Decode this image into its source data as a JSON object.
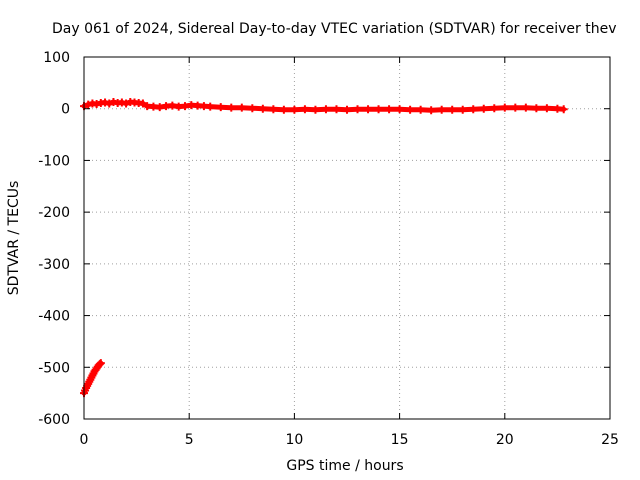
{
  "chart_data": {
    "type": "scatter",
    "title": "Day 061 of 2024, Sidereal Day-to-day VTEC variation (SDTVAR) for receiver thev",
    "xlabel": "GPS time / hours",
    "ylabel": "SDTVAR / TECUs",
    "xlim": [
      0,
      25
    ],
    "ylim": [
      -600,
      100
    ],
    "xticks": [
      "0",
      "5",
      "10",
      "15",
      "20",
      "25"
    ],
    "yticks": [
      "100",
      "0",
      "-100",
      "-200",
      "-300",
      "-400",
      "-500",
      "-600"
    ],
    "grid": true,
    "legend": "none",
    "marker": "plus",
    "series_color": "#ff0000",
    "series": [
      {
        "x": [
          0.0,
          0.2,
          0.4,
          0.6,
          0.8,
          1.0,
          1.2,
          1.4,
          1.6,
          1.8,
          2.0,
          2.2,
          2.4,
          2.6,
          2.8,
          3.0,
          3.3,
          3.6,
          3.9,
          4.2,
          4.5,
          4.8,
          5.1,
          5.4,
          5.7,
          6.0,
          6.5,
          7.0,
          7.5,
          8.0,
          8.5,
          9.0,
          9.5,
          10.0,
          10.5,
          11.0,
          11.5,
          12.0,
          12.5,
          13.0,
          13.5,
          14.0,
          14.5,
          15.0,
          15.5,
          16.0,
          16.5,
          17.0,
          17.5,
          18.0,
          18.5,
          19.0,
          19.5,
          20.0,
          20.5,
          21.0,
          21.5,
          22.0,
          22.5,
          22.8
        ],
        "y": [
          5,
          8,
          10,
          9,
          11,
          12,
          10,
          13,
          11,
          12,
          10,
          13,
          12,
          11,
          10,
          5,
          4,
          3,
          5,
          6,
          4,
          5,
          7,
          6,
          5,
          4,
          3,
          2,
          2,
          1,
          0,
          -1,
          -2,
          -2,
          -1,
          -2,
          -1,
          -1,
          -2,
          -1,
          -1,
          -1,
          -1,
          -1,
          -2,
          -2,
          -3,
          -2,
          -2,
          -2,
          -1,
          0,
          1,
          2,
          2,
          2,
          1,
          1,
          0,
          -1
        ]
      },
      {
        "x": [
          0.0,
          0.05,
          0.1,
          0.15,
          0.2,
          0.25,
          0.3,
          0.35,
          0.4,
          0.45,
          0.5,
          0.55,
          0.6,
          0.65,
          0.7,
          0.75,
          0.8
        ],
        "y": [
          -550,
          -545,
          -540,
          -536,
          -532,
          -528,
          -524,
          -520,
          -516,
          -512,
          -508,
          -505,
          -502,
          -499,
          -496,
          -494,
          -492
        ]
      }
    ]
  }
}
